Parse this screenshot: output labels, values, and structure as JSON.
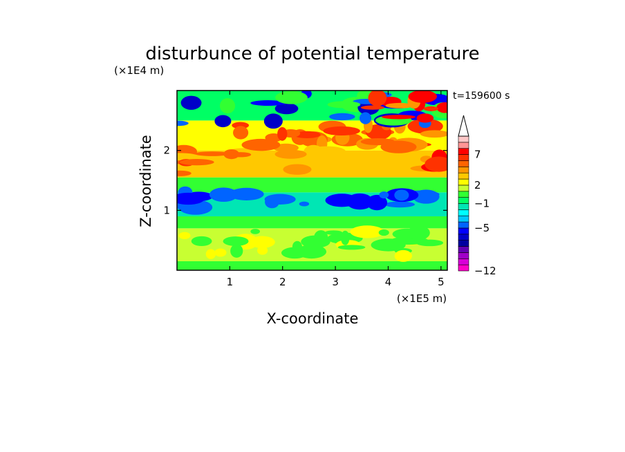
{
  "chart_data": {
    "type": "heatmap",
    "title": "disturbunce of potential temperature",
    "xlabel": "X-coordinate",
    "ylabel": "Z-coordinate",
    "x_scale_label": "(×1E5 m)",
    "y_scale_label": "(×1E4 m)",
    "time_label": "t=159600 s",
    "xlim": [
      0,
      5.12
    ],
    "ylim": [
      0,
      3.0
    ],
    "x_ticks": [
      1,
      2,
      3,
      4,
      5
    ],
    "y_ticks": [
      1,
      2
    ],
    "colorbar": {
      "levels": [
        -12,
        -11,
        -10,
        -9,
        -8,
        -7,
        -6,
        -5,
        -4,
        -3,
        -2,
        -1,
        0,
        1,
        2,
        3,
        4,
        5,
        6,
        7,
        8,
        9
      ],
      "labels": [
        {
          "value": -12,
          "text": "−12"
        },
        {
          "value": -5,
          "text": "−5"
        },
        {
          "value": -1,
          "text": "−1"
        },
        {
          "value": 2,
          "text": "2"
        },
        {
          "value": 7,
          "text": "7"
        }
      ],
      "colors": [
        "#ff00c8",
        "#d800d8",
        "#a000c8",
        "#6400b4",
        "#0000a0",
        "#0000c8",
        "#0000ff",
        "#0064ff",
        "#00c8ff",
        "#00ffff",
        "#00e6b4",
        "#00ff64",
        "#32ff32",
        "#c8ff32",
        "#ffff00",
        "#ffc800",
        "#ff9600",
        "#ff6400",
        "#ff3200",
        "#ff0000",
        "#ff9696",
        "#ffc8c8"
      ]
    },
    "bands": [
      {
        "z_from": 0.0,
        "z_to": 0.15,
        "value": 0.3
      },
      {
        "z_from": 0.15,
        "z_to": 0.7,
        "value": 1.2
      },
      {
        "z_from": 0.7,
        "z_to": 0.9,
        "value": 0.3
      },
      {
        "z_from": 0.9,
        "z_to": 1.3,
        "value": -1.5
      },
      {
        "z_from": 1.3,
        "z_to": 1.55,
        "value": 0.3
      },
      {
        "z_from": 1.55,
        "z_to": 2.0,
        "value": 3.5
      },
      {
        "z_from": 2.0,
        "z_to": 2.5,
        "value": 2.5
      },
      {
        "z_from": 2.5,
        "z_to": 3.0,
        "value": -1.0
      }
    ]
  }
}
